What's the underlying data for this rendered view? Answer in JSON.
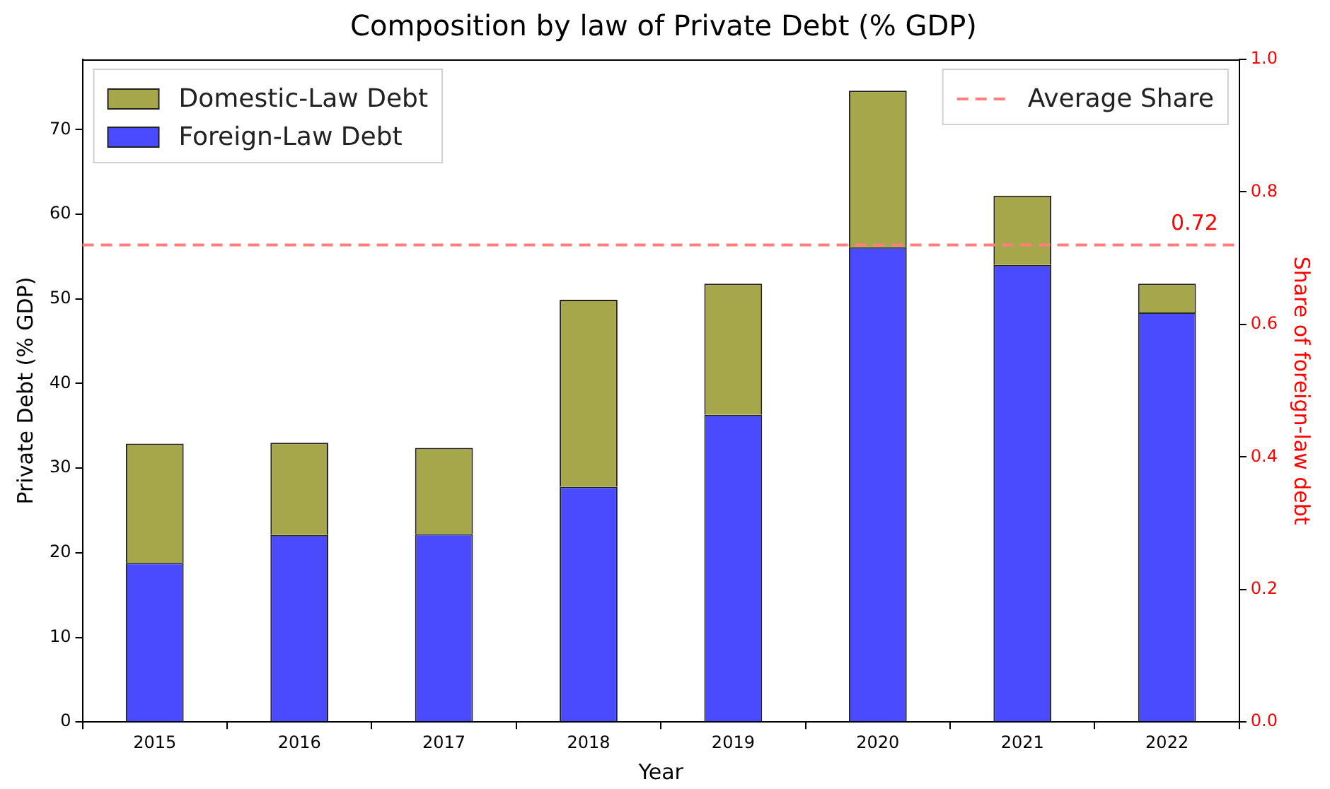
{
  "chart_data": {
    "type": "bar",
    "title": "Composition by law of Private Debt (% GDP)",
    "xlabel": "Year",
    "ylabel": "Private Debt (% GDP)",
    "y2label": "Share of foreign-law debt",
    "categories": [
      "2015",
      "2016",
      "2017",
      "2018",
      "2019",
      "2020",
      "2021",
      "2022"
    ],
    "stacked": true,
    "series": [
      {
        "name": "Foreign-Law Debt",
        "color": "#4a4aff",
        "values": [
          18.8,
          22.1,
          22.2,
          27.8,
          36.3,
          56.1,
          54.0,
          48.4
        ]
      },
      {
        "name": "Domestic-Law Debt",
        "color": "#a6a64b",
        "values": [
          14.1,
          10.9,
          10.2,
          22.1,
          15.5,
          18.5,
          8.2,
          3.4
        ]
      }
    ],
    "ylim": [
      0,
      78.3
    ],
    "yticks": [
      0,
      10,
      20,
      30,
      40,
      50,
      60,
      70
    ],
    "y2lim": [
      0,
      1
    ],
    "y2ticks": [
      {
        "value": 0,
        "label": "0.0"
      },
      {
        "value": 0.2,
        "label": "0.2"
      },
      {
        "value": 0.4,
        "label": "0.4"
      },
      {
        "value": 0.6,
        "label": "0.6"
      },
      {
        "value": 0.8,
        "label": "0.8"
      },
      {
        "value": 1,
        "label": "1.0"
      }
    ],
    "ref_lines": [
      {
        "axis": "y2",
        "value": 0.72,
        "label": "Average Share",
        "color": "#ff7f7f",
        "line_style": "dashed"
      }
    ],
    "annotations": [
      "0.72"
    ],
    "grid": false,
    "legend": "top left"
  }
}
